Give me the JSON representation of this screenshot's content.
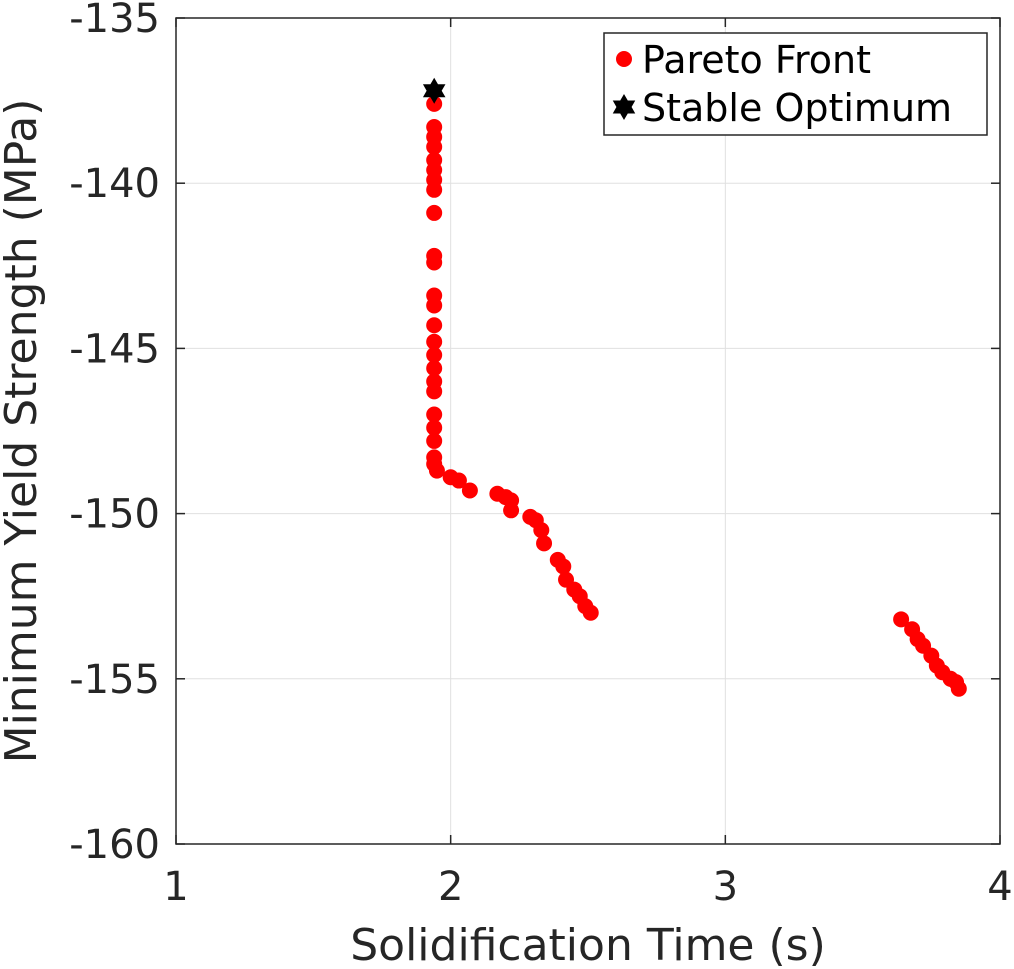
{
  "chart_data": {
    "type": "scatter",
    "xlabel": "Solidification Time (s)",
    "ylabel": "Minimum Yield Strength (MPa)",
    "xlim": [
      1,
      4
    ],
    "ylim": [
      -160,
      -135
    ],
    "xticks": [
      "1",
      "2",
      "3",
      "4"
    ],
    "yticks": [
      "-135",
      "-140",
      "-145",
      "-150",
      "-155",
      "-160"
    ],
    "grid": true,
    "legend_position": "top-right",
    "series": [
      {
        "name": "Pareto Front",
        "marker": "circle",
        "color": "#ff0000",
        "points": [
          [
            1.94,
            -137.6
          ],
          [
            1.94,
            -138.3
          ],
          [
            1.94,
            -138.6
          ],
          [
            1.94,
            -138.9
          ],
          [
            1.94,
            -139.3
          ],
          [
            1.94,
            -139.6
          ],
          [
            1.94,
            -139.9
          ],
          [
            1.94,
            -140.2
          ],
          [
            1.94,
            -140.9
          ],
          [
            1.94,
            -142.2
          ],
          [
            1.94,
            -142.4
          ],
          [
            1.94,
            -143.4
          ],
          [
            1.94,
            -143.7
          ],
          [
            1.94,
            -144.3
          ],
          [
            1.94,
            -144.8
          ],
          [
            1.94,
            -145.2
          ],
          [
            1.94,
            -145.6
          ],
          [
            1.94,
            -146.0
          ],
          [
            1.94,
            -146.3
          ],
          [
            1.94,
            -147.0
          ],
          [
            1.94,
            -147.4
          ],
          [
            1.94,
            -147.8
          ],
          [
            1.94,
            -148.3
          ],
          [
            1.94,
            -148.5
          ],
          [
            1.95,
            -148.7
          ],
          [
            2.0,
            -148.9
          ],
          [
            2.03,
            -149.0
          ],
          [
            2.07,
            -149.3
          ],
          [
            2.17,
            -149.4
          ],
          [
            2.2,
            -149.5
          ],
          [
            2.22,
            -149.6
          ],
          [
            2.22,
            -149.9
          ],
          [
            2.29,
            -150.1
          ],
          [
            2.31,
            -150.2
          ],
          [
            2.33,
            -150.5
          ],
          [
            2.34,
            -150.9
          ],
          [
            2.39,
            -151.4
          ],
          [
            2.41,
            -151.6
          ],
          [
            2.42,
            -152.0
          ],
          [
            2.45,
            -152.3
          ],
          [
            2.47,
            -152.5
          ],
          [
            2.49,
            -152.8
          ],
          [
            2.51,
            -153.0
          ],
          [
            3.64,
            -153.2
          ],
          [
            3.68,
            -153.5
          ],
          [
            3.7,
            -153.8
          ],
          [
            3.72,
            -154.0
          ],
          [
            3.75,
            -154.3
          ],
          [
            3.77,
            -154.6
          ],
          [
            3.79,
            -154.8
          ],
          [
            3.82,
            -155.0
          ],
          [
            3.84,
            -155.1
          ],
          [
            3.85,
            -155.3
          ]
        ]
      },
      {
        "name": "Stable Optimum",
        "marker": "hexagram",
        "color": "#000000",
        "points": [
          [
            1.94,
            -137.2
          ]
        ]
      }
    ]
  }
}
